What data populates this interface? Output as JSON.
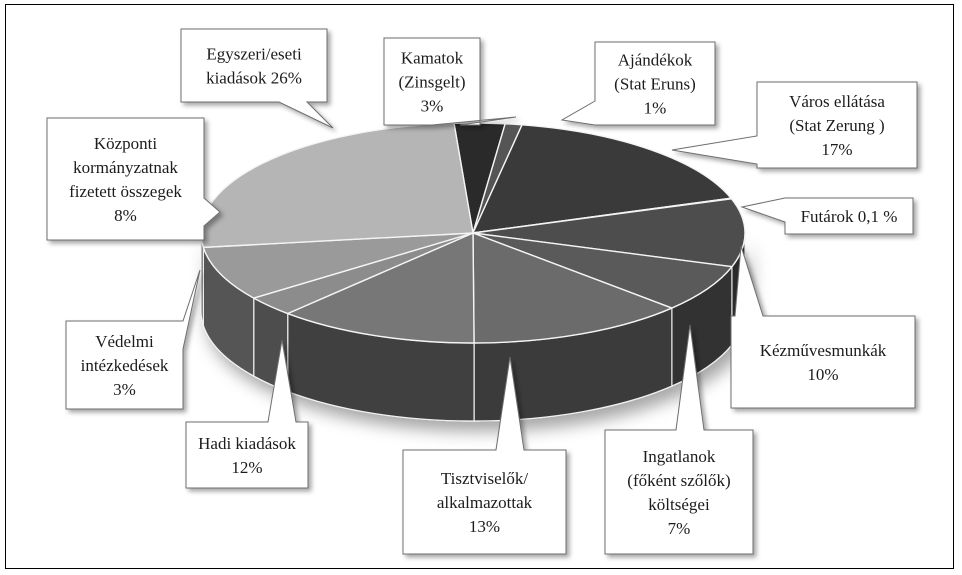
{
  "chart_data": {
    "type": "pie",
    "title": "",
    "slices": [
      {
        "label_lines": [
          "Kamatok",
          "(Zinsgelt)",
          "3%"
        ],
        "value": 3,
        "color": "#2a2a2a"
      },
      {
        "label_lines": [
          "Ajándékok",
          "(Stat Eruns)",
          "1%"
        ],
        "value": 1,
        "color": "#555555"
      },
      {
        "label_lines": [
          "Város ellátása",
          "(Stat Zerung )",
          "17%"
        ],
        "value": 17,
        "color": "#3a3a3a"
      },
      {
        "label_lines": [
          "Futárok 0,1 %"
        ],
        "value": 0.1,
        "color": "#8a8a8a"
      },
      {
        "label_lines": [
          "Kézművesmunkák",
          "10%"
        ],
        "value": 10,
        "color": "#4d4d4d"
      },
      {
        "label_lines": [
          "Ingatlanok",
          "(főként szőlők)",
          "költségei",
          "7%"
        ],
        "value": 7,
        "color": "#5a5a5a"
      },
      {
        "label_lines": [
          "Tisztviselők/",
          "alkalmazottak",
          "13%"
        ],
        "value": 13,
        "color": "#6b6b6b"
      },
      {
        "label_lines": [
          "Hadi kiadások",
          "12%"
        ],
        "value": 12,
        "color": "#777777"
      },
      {
        "label_lines": [
          "Védelmi",
          "intézkedések",
          "3%"
        ],
        "value": 3,
        "color": "#8c8c8c"
      },
      {
        "label_lines": [
          "Központi",
          "kormányzatnak",
          "fizetett összegek",
          "8%"
        ],
        "value": 8,
        "color": "#9a9a9a"
      },
      {
        "label_lines": [
          "Egyszeri/eseti",
          "kiadások 26%"
        ],
        "value": 26,
        "color": "#b5b5b5"
      }
    ]
  }
}
